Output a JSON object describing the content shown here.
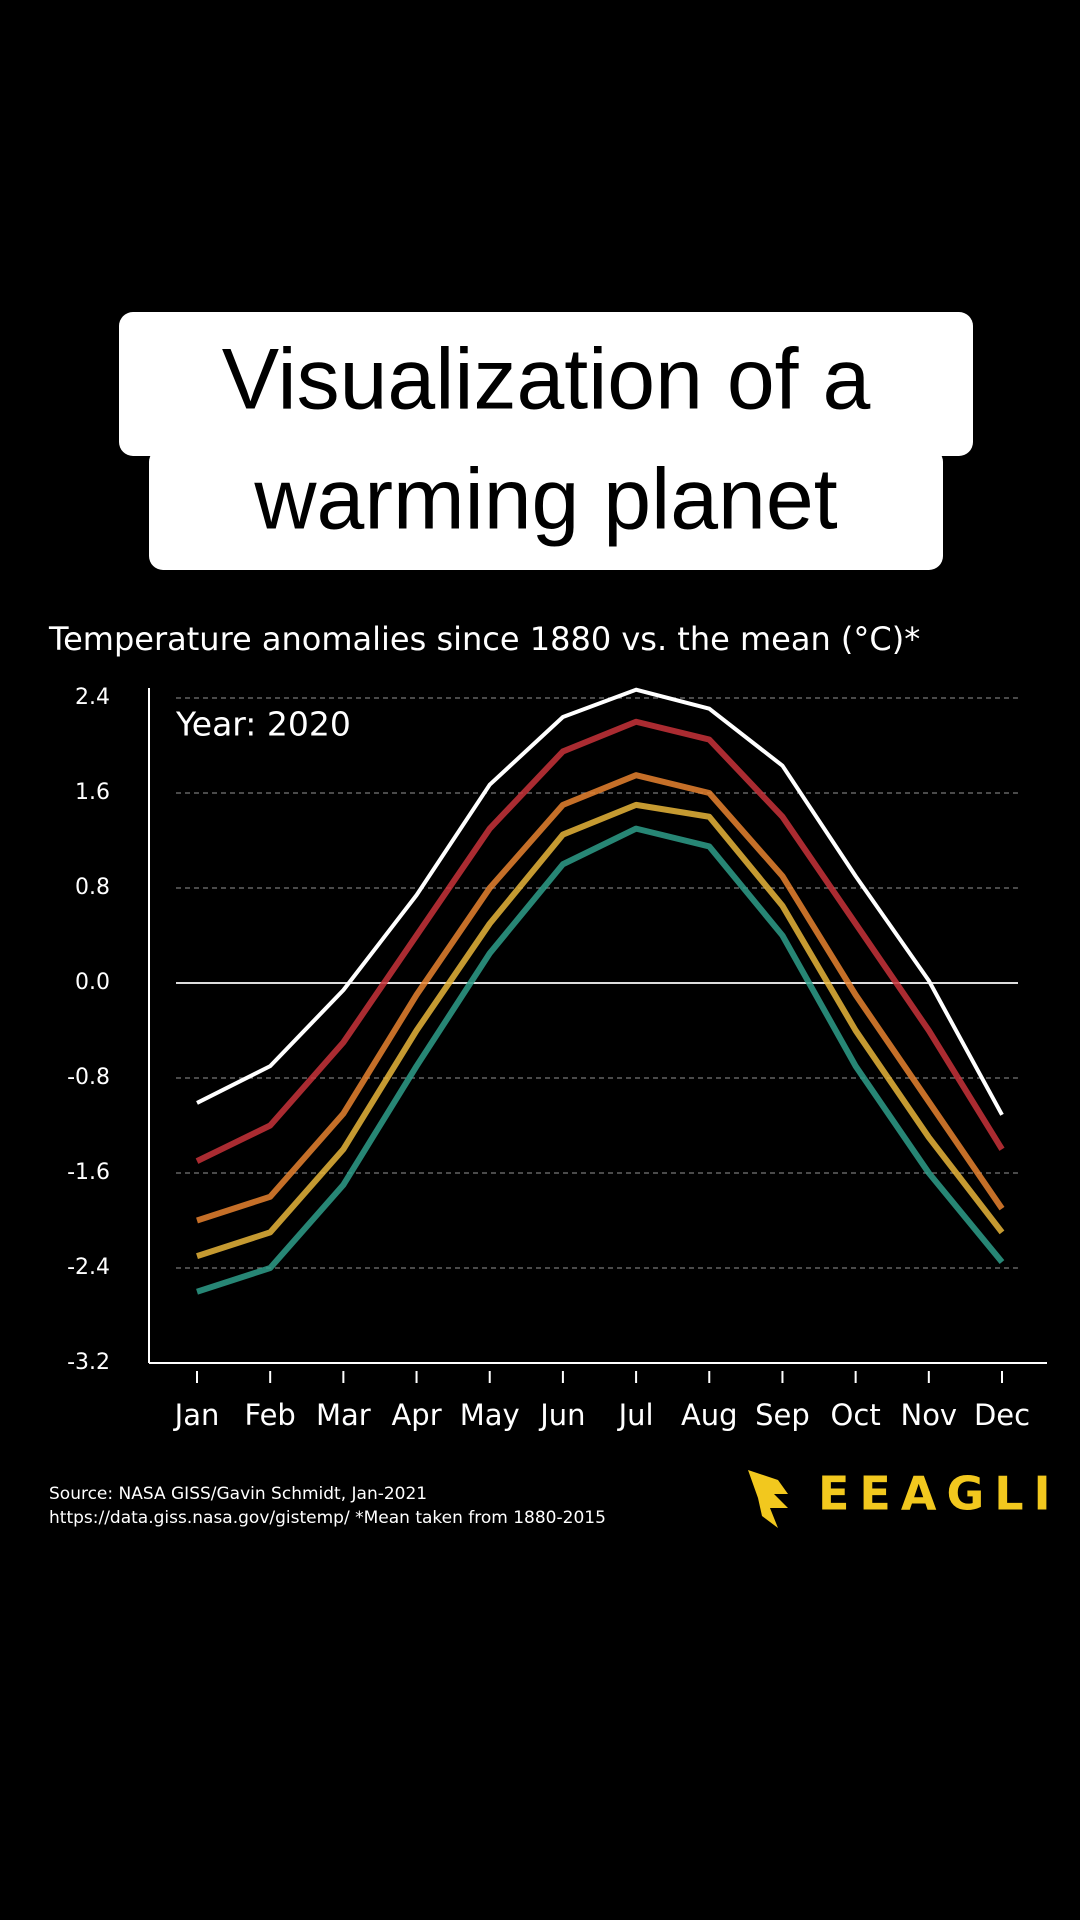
{
  "header": {
    "title_line1": "Visualization of a",
    "title_line2": "warming planet"
  },
  "chart_data": {
    "type": "line",
    "title": "Temperature anomalies since 1880 vs. the mean (°C)*",
    "annotation": "Year: 2020",
    "categories": [
      "Jan",
      "Feb",
      "Mar",
      "Apr",
      "May",
      "Jun",
      "Jul",
      "Aug",
      "Sep",
      "Oct",
      "Nov",
      "Dec"
    ],
    "series": [
      {
        "color": "#2e9e8a",
        "values": [
          -2.6,
          -2.4,
          -1.7,
          -0.7,
          0.25,
          1.0,
          1.3,
          1.15,
          0.4,
          -0.7,
          -1.6,
          -2.35
        ]
      },
      {
        "color": "#e8b53a",
        "values": [
          -2.3,
          -2.1,
          -1.4,
          -0.4,
          0.5,
          1.25,
          1.5,
          1.4,
          0.65,
          -0.4,
          -1.3,
          -2.1
        ]
      },
      {
        "color": "#e8832f",
        "values": [
          -2.0,
          -1.8,
          -1.1,
          -0.1,
          0.8,
          1.5,
          1.75,
          1.6,
          0.9,
          -0.1,
          -1.0,
          -1.9
        ]
      },
      {
        "color": "#c8323a",
        "values": [
          -1.5,
          -1.2,
          -0.5,
          0.4,
          1.3,
          1.95,
          2.2,
          2.05,
          1.4,
          0.5,
          -0.4,
          -1.4
        ]
      },
      {
        "color": "#ffffff",
        "values": [
          -1.01,
          -0.7,
          -0.06,
          0.74,
          1.67,
          2.24,
          2.47,
          2.31,
          1.83,
          0.9,
          0.02,
          -1.11
        ]
      }
    ],
    "ylim": [
      -3.2,
      2.4
    ],
    "yticks": [
      -3.2,
      -2.4,
      -1.6,
      -0.8,
      {
        "value": 0,
        "label": "0.0"
      },
      0.8,
      1.6,
      2.4
    ],
    "grid": true,
    "source_line1": "Source: NASA GISS/Gavin Schmidt, Jan-2021",
    "source_line2": "https://data.giss.nasa.gov/gistemp/ *Mean taken from 1880-2015",
    "brand": "EEAGLI"
  }
}
